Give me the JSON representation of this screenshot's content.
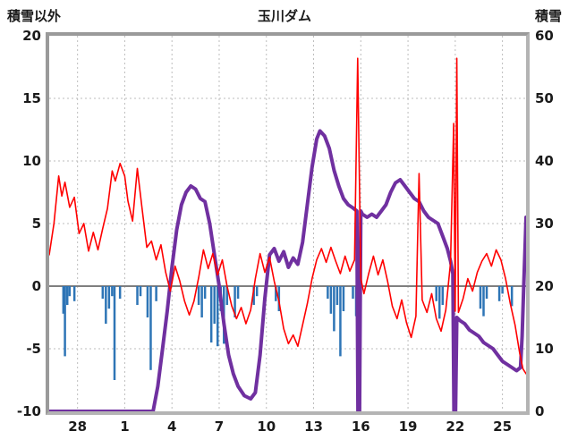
{
  "header": {
    "left_axis_title": "積雪以外",
    "title": "玉川ダム",
    "right_axis_title": "積雪"
  },
  "chart_data": {
    "type": "line",
    "title": "玉川ダム",
    "grid": true,
    "legend": "none",
    "left_axis": {
      "label": "積雪以外",
      "min": -10,
      "max": 20,
      "tick_values": [
        20,
        15,
        10,
        5,
        0,
        -5,
        -10
      ],
      "tick_labels": [
        "20",
        "15",
        "10",
        "5",
        "0",
        "-5",
        "-10"
      ]
    },
    "right_axis": {
      "label": "積雪",
      "min": 0,
      "max": 60,
      "tick_values": [
        60,
        50,
        40,
        30,
        20,
        10,
        0
      ],
      "tick_labels": [
        "60",
        "50",
        "40",
        "30",
        "20",
        "10",
        "0"
      ]
    },
    "x_axis": {
      "min": 0,
      "max": 30.3,
      "tick_values": [
        1.8,
        4.8,
        7.8,
        10.8,
        13.8,
        16.8,
        19.8,
        22.8,
        25.8,
        28.8
      ],
      "tick_labels": [
        "28",
        "1",
        "4",
        "7",
        "10",
        "13",
        "16",
        "19",
        "22",
        "25"
      ]
    },
    "colors": {
      "red_line": "#ff0000",
      "purple_line": "#7030a0",
      "blue_bars": "#2e75b6",
      "grid": "#bdbdbd",
      "zero_line": "#7f7f7f",
      "frame": "#a6a6a6",
      "background": "#ffffff",
      "text": "#1a1a1a"
    },
    "series": [
      {
        "id": "blue-bars",
        "axis": "left",
        "style": "bar",
        "color": "#2e75b6",
        "bar_width": 2.5,
        "points": [
          [
            0.9,
            -2.2
          ],
          [
            1.0,
            -5.6
          ],
          [
            1.15,
            -1.5
          ],
          [
            1.3,
            -0.8
          ],
          [
            1.6,
            -1.2
          ],
          [
            3.4,
            -1.0
          ],
          [
            3.6,
            -3.0
          ],
          [
            3.8,
            -1.8
          ],
          [
            4.0,
            -0.8
          ],
          [
            4.15,
            -7.5
          ],
          [
            4.5,
            -1.0
          ],
          [
            5.6,
            -1.5
          ],
          [
            5.8,
            -0.8
          ],
          [
            6.25,
            -2.5
          ],
          [
            6.45,
            -6.7
          ],
          [
            6.8,
            -1.2
          ],
          [
            9.5,
            -1.5
          ],
          [
            9.7,
            -2.5
          ],
          [
            9.9,
            -1.0
          ],
          [
            10.3,
            -4.5
          ],
          [
            10.5,
            -3.0
          ],
          [
            10.7,
            -4.8
          ],
          [
            10.9,
            -2.0
          ],
          [
            11.1,
            -4.6
          ],
          [
            11.3,
            -1.5
          ],
          [
            11.8,
            -2.5
          ],
          [
            12.0,
            -1.0
          ],
          [
            13.0,
            -1.5
          ],
          [
            13.2,
            -0.8
          ],
          [
            14.4,
            -1.2
          ],
          [
            14.6,
            -2.0
          ],
          [
            17.7,
            -1.0
          ],
          [
            17.9,
            -2.2
          ],
          [
            18.1,
            -3.6
          ],
          [
            18.3,
            -1.5
          ],
          [
            18.5,
            -5.6
          ],
          [
            18.7,
            -2.0
          ],
          [
            19.3,
            -1.0
          ],
          [
            19.5,
            -2.4
          ],
          [
            24.6,
            -1.2
          ],
          [
            24.8,
            -2.6
          ],
          [
            25.0,
            -1.5
          ],
          [
            27.4,
            -1.8
          ],
          [
            27.6,
            -2.4
          ],
          [
            27.8,
            -1.0
          ],
          [
            28.6,
            -1.2
          ],
          [
            28.8,
            -0.6
          ],
          [
            29.4,
            -1.6
          ]
        ]
      },
      {
        "id": "purple-line",
        "axis": "right",
        "style": "line",
        "color": "#7030a0",
        "stroke_width": 4,
        "points": [
          [
            0,
            0
          ],
          [
            1,
            0
          ],
          [
            2,
            0
          ],
          [
            3,
            0
          ],
          [
            4,
            0
          ],
          [
            5,
            0
          ],
          [
            6,
            0
          ],
          [
            6.6,
            0
          ],
          [
            6.9,
            4
          ],
          [
            7.2,
            10
          ],
          [
            7.5,
            16
          ],
          [
            7.8,
            23
          ],
          [
            8.1,
            29
          ],
          [
            8.4,
            33
          ],
          [
            8.7,
            35
          ],
          [
            9,
            36
          ],
          [
            9.3,
            35.5
          ],
          [
            9.6,
            34
          ],
          [
            9.9,
            33.5
          ],
          [
            10.2,
            30
          ],
          [
            10.5,
            25
          ],
          [
            10.8,
            20
          ],
          [
            11.1,
            14
          ],
          [
            11.4,
            9
          ],
          [
            11.7,
            6
          ],
          [
            12,
            4
          ],
          [
            12.4,
            2.5
          ],
          [
            12.8,
            2
          ],
          [
            13.1,
            3
          ],
          [
            13.4,
            9
          ],
          [
            13.7,
            18
          ],
          [
            14,
            25
          ],
          [
            14.3,
            26
          ],
          [
            14.6,
            24
          ],
          [
            14.9,
            25.5
          ],
          [
            15.2,
            23
          ],
          [
            15.5,
            24.5
          ],
          [
            15.8,
            23.5
          ],
          [
            16.1,
            27
          ],
          [
            16.4,
            33
          ],
          [
            16.7,
            39
          ],
          [
            17,
            43.5
          ],
          [
            17.2,
            44.8
          ],
          [
            17.5,
            44
          ],
          [
            17.8,
            42
          ],
          [
            18.1,
            38.5
          ],
          [
            18.4,
            36
          ],
          [
            18.7,
            34
          ],
          [
            19,
            33
          ],
          [
            19.3,
            32.5
          ],
          [
            19.55,
            32
          ],
          [
            19.62,
            0
          ],
          [
            19.72,
            0
          ],
          [
            19.8,
            32
          ],
          [
            19.9,
            31.5
          ],
          [
            20.2,
            31
          ],
          [
            20.5,
            31.5
          ],
          [
            20.8,
            31
          ],
          [
            21.1,
            32
          ],
          [
            21.4,
            33
          ],
          [
            21.7,
            35
          ],
          [
            22,
            36.5
          ],
          [
            22.3,
            37
          ],
          [
            22.6,
            36
          ],
          [
            22.9,
            35
          ],
          [
            23.2,
            34
          ],
          [
            23.5,
            33.5
          ],
          [
            23.8,
            32
          ],
          [
            24.1,
            31
          ],
          [
            24.4,
            30.5
          ],
          [
            24.7,
            30
          ],
          [
            25,
            28
          ],
          [
            25.3,
            26
          ],
          [
            25.5,
            24
          ],
          [
            25.65,
            22
          ],
          [
            25.72,
            0
          ],
          [
            25.82,
            0
          ],
          [
            25.9,
            15
          ],
          [
            26.1,
            14.5
          ],
          [
            26.4,
            14
          ],
          [
            26.7,
            13
          ],
          [
            27,
            12.5
          ],
          [
            27.3,
            12
          ],
          [
            27.6,
            11
          ],
          [
            27.9,
            10.5
          ],
          [
            28.2,
            10
          ],
          [
            28.5,
            9
          ],
          [
            28.8,
            8
          ],
          [
            29.1,
            7.5
          ],
          [
            29.4,
            7
          ],
          [
            29.7,
            6.5
          ],
          [
            29.95,
            7
          ],
          [
            30.05,
            12
          ],
          [
            30.15,
            20
          ],
          [
            30.25,
            27
          ],
          [
            30.3,
            31
          ]
        ]
      },
      {
        "id": "red-line",
        "axis": "left",
        "style": "line",
        "color": "#ff0000",
        "stroke_width": 1.6,
        "points": [
          [
            0,
            2.5
          ],
          [
            0.3,
            5
          ],
          [
            0.6,
            8.8
          ],
          [
            0.8,
            7.2
          ],
          [
            1.0,
            8.3
          ],
          [
            1.3,
            6.3
          ],
          [
            1.6,
            7.1
          ],
          [
            1.9,
            4.2
          ],
          [
            2.2,
            5
          ],
          [
            2.5,
            2.8
          ],
          [
            2.8,
            4.3
          ],
          [
            3.1,
            2.9
          ],
          [
            3.4,
            4.6
          ],
          [
            3.7,
            6.2
          ],
          [
            4.0,
            9.2
          ],
          [
            4.2,
            8.4
          ],
          [
            4.5,
            9.8
          ],
          [
            4.8,
            8.8
          ],
          [
            5.0,
            6.8
          ],
          [
            5.3,
            5.2
          ],
          [
            5.6,
            9.4
          ],
          [
            5.9,
            6.2
          ],
          [
            6.2,
            3.1
          ],
          [
            6.5,
            3.6
          ],
          [
            6.8,
            2.1
          ],
          [
            7.1,
            3.3
          ],
          [
            7.4,
            1.1
          ],
          [
            7.7,
            -0.4
          ],
          [
            8.0,
            1.6
          ],
          [
            8.3,
            0.4
          ],
          [
            8.6,
            -1.2
          ],
          [
            8.9,
            -2.3
          ],
          [
            9.2,
            -1.2
          ],
          [
            9.5,
            0.7
          ],
          [
            9.8,
            2.9
          ],
          [
            10.1,
            1.4
          ],
          [
            10.4,
            2.6
          ],
          [
            10.7,
            0.9
          ],
          [
            11.0,
            2.1
          ],
          [
            11.3,
            0
          ],
          [
            11.6,
            -1.6
          ],
          [
            11.9,
            -2.6
          ],
          [
            12.2,
            -1.7
          ],
          [
            12.5,
            -3
          ],
          [
            12.8,
            -1.9
          ],
          [
            13.1,
            0.6
          ],
          [
            13.4,
            2.6
          ],
          [
            13.7,
            1.1
          ],
          [
            14.0,
            2.3
          ],
          [
            14.3,
            0.4
          ],
          [
            14.6,
            -1.2
          ],
          [
            14.9,
            -3.4
          ],
          [
            15.2,
            -4.6
          ],
          [
            15.5,
            -3.9
          ],
          [
            15.8,
            -4.8
          ],
          [
            16.1,
            -3.1
          ],
          [
            16.4,
            -1.4
          ],
          [
            16.7,
            0.6
          ],
          [
            17.0,
            2.1
          ],
          [
            17.3,
            3
          ],
          [
            17.6,
            1.9
          ],
          [
            17.9,
            3.1
          ],
          [
            18.2,
            2
          ],
          [
            18.5,
            1
          ],
          [
            18.8,
            2.4
          ],
          [
            19.1,
            1.2
          ],
          [
            19.4,
            2.1
          ],
          [
            19.6,
            18.2
          ],
          [
            19.8,
            0.6
          ],
          [
            20.0,
            -0.6
          ],
          [
            20.3,
            1
          ],
          [
            20.6,
            2.4
          ],
          [
            20.9,
            0.9
          ],
          [
            21.2,
            2.1
          ],
          [
            21.5,
            0.4
          ],
          [
            21.8,
            -1.6
          ],
          [
            22.1,
            -2.6
          ],
          [
            22.4,
            -1.1
          ],
          [
            22.7,
            -2.9
          ],
          [
            23.0,
            -4.1
          ],
          [
            23.3,
            -2.4
          ],
          [
            23.5,
            9
          ],
          [
            23.7,
            -1.1
          ],
          [
            24.0,
            -2.1
          ],
          [
            24.3,
            -0.6
          ],
          [
            24.6,
            -2.6
          ],
          [
            24.9,
            -3.6
          ],
          [
            25.2,
            -1.9
          ],
          [
            25.5,
            1.9
          ],
          [
            25.7,
            13
          ],
          [
            25.8,
            -2
          ],
          [
            25.9,
            18.2
          ],
          [
            26.0,
            -2.1
          ],
          [
            26.3,
            -1
          ],
          [
            26.6,
            0.6
          ],
          [
            26.9,
            -0.4
          ],
          [
            27.2,
            1.1
          ],
          [
            27.5,
            2
          ],
          [
            27.8,
            2.6
          ],
          [
            28.1,
            1.6
          ],
          [
            28.4,
            2.9
          ],
          [
            28.7,
            2.1
          ],
          [
            29.0,
            0.6
          ],
          [
            29.3,
            -1.4
          ],
          [
            29.6,
            -3.1
          ],
          [
            29.9,
            -5.4
          ],
          [
            30.1,
            -6.6
          ],
          [
            30.3,
            -7
          ]
        ]
      }
    ]
  }
}
